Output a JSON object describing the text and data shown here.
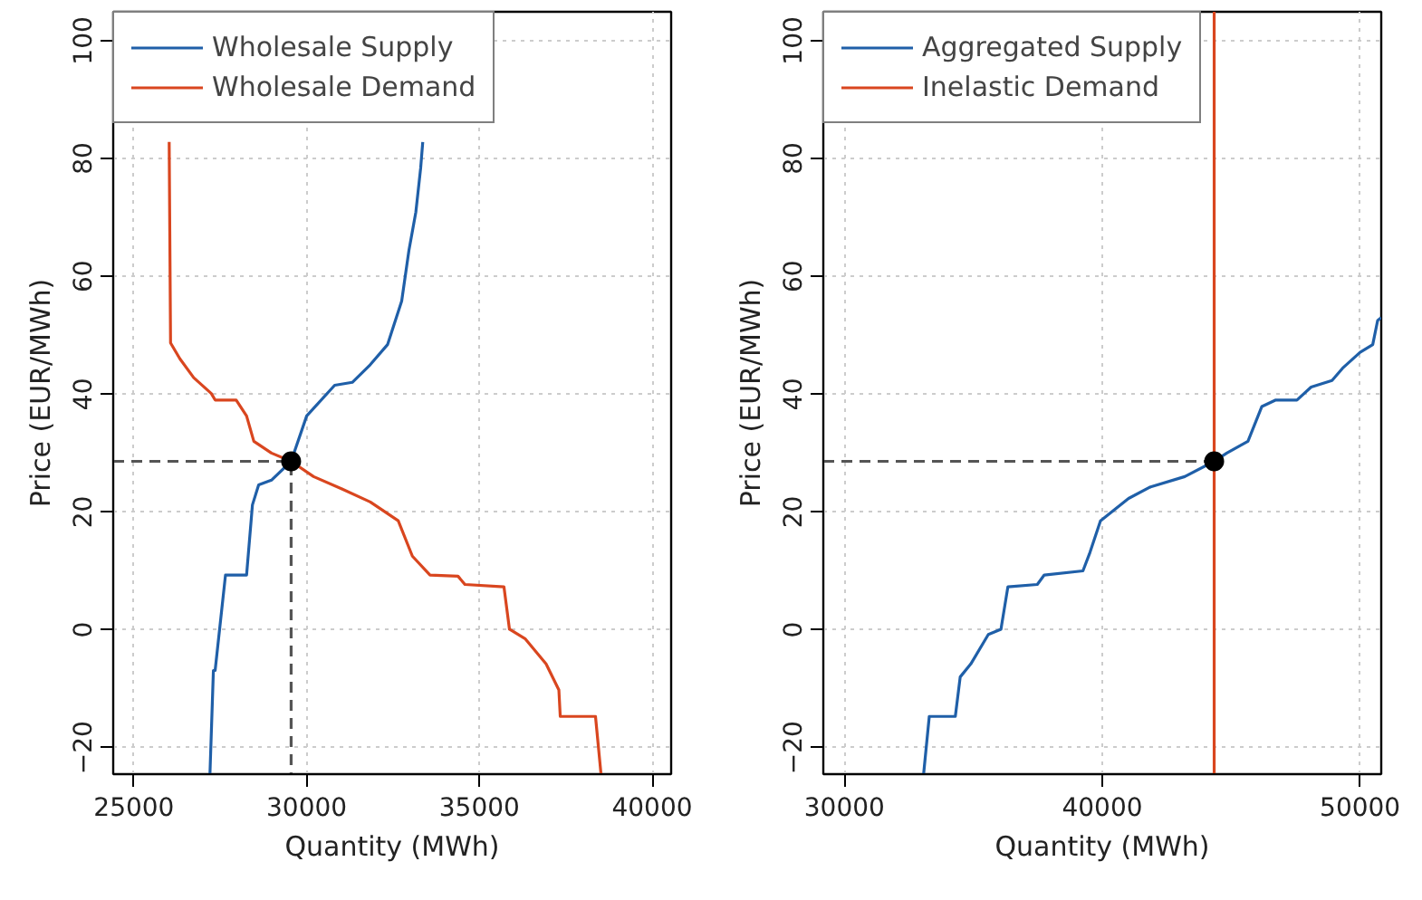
{
  "chart_data": [
    {
      "type": "line",
      "xlabel": "Quantity (MWh)",
      "ylabel": "Price (EUR/MWh)",
      "xlim": [
        24400,
        40550
      ],
      "ylim": [
        -24.5,
        104.9
      ],
      "xticks": [
        25000,
        30000,
        35000,
        40000
      ],
      "yticks": [
        -20,
        0,
        20,
        40,
        60,
        80,
        100
      ],
      "grid": true,
      "legend": "top left",
      "series": [
        {
          "name": "Wholesale Supply",
          "color": "#1f5fa8",
          "x": [
            27200,
            27300,
            27350,
            27650,
            28260,
            28430,
            28610,
            28980,
            29550,
            30000,
            30810,
            31320,
            31840,
            32340,
            32750,
            32960,
            33160,
            33300,
            33360
          ],
          "values": [
            -24.5,
            -6.9,
            -6.9,
            9.3,
            9.3,
            21.2,
            24.6,
            25.4,
            28.6,
            36.3,
            41.5,
            42.0,
            45.0,
            48.4,
            55.8,
            64.4,
            70.9,
            78.4,
            82.8
          ]
        },
        {
          "name": "Wholesale Demand",
          "color": "#d9461f",
          "x": [
            26020,
            26060,
            26330,
            26730,
            27240,
            27350,
            27960,
            28260,
            28470,
            28980,
            29550,
            30200,
            31020,
            31840,
            32650,
            33060,
            33570,
            34380,
            34580,
            35710,
            35870,
            36320,
            36930,
            37300,
            37340,
            38360,
            38520
          ],
          "values": [
            82.8,
            48.7,
            46.0,
            42.8,
            40.1,
            39.0,
            39.0,
            36.3,
            32.0,
            30.0,
            28.6,
            26.0,
            23.9,
            21.7,
            18.5,
            12.5,
            9.3,
            9.1,
            7.7,
            7.3,
            0.1,
            -1.5,
            -5.8,
            -10.2,
            -14.7,
            -14.7,
            -24.5
          ]
        },
        {
          "color": "#555555",
          "line_style": "dashed",
          "x": [
            24400,
            29550,
            29550
          ],
          "values": [
            28.6,
            28.6,
            -24.5
          ]
        },
        {
          "type": "scatter",
          "marker": "circle",
          "color": "#000000",
          "x": [
            29550
          ],
          "values": [
            28.6
          ]
        }
      ]
    },
    {
      "type": "line",
      "xlabel": "Quantity (MWh)",
      "ylabel": "Price (EUR/MWh)",
      "xlim": [
        29180,
        50820
      ],
      "ylim": [
        -24.5,
        104.9
      ],
      "xticks": [
        30000,
        40000,
        50000
      ],
      "yticks": [
        -20,
        0,
        20,
        40,
        60,
        80,
        100
      ],
      "grid": true,
      "legend": "top left",
      "series": [
        {
          "name": "Aggregated Supply",
          "color": "#1f5fa8",
          "x": [
            33070,
            33290,
            34300,
            34490,
            34900,
            35580,
            36070,
            36340,
            37480,
            37750,
            39250,
            39520,
            39930,
            41020,
            41840,
            43200,
            44340,
            44830,
            45650,
            46190,
            46730,
            47550,
            48100,
            48910,
            49320,
            50000,
            50490,
            50680,
            50820
          ],
          "values": [
            -24.5,
            -14.7,
            -14.7,
            -8.0,
            -5.8,
            -0.8,
            0.1,
            7.3,
            7.7,
            9.3,
            10.0,
            13.1,
            18.5,
            22.3,
            24.2,
            26.0,
            28.6,
            30.0,
            32.0,
            37.9,
            39.0,
            39.0,
            41.2,
            42.3,
            44.4,
            47.1,
            48.4,
            52.5,
            53.0
          ]
        },
        {
          "name": "Inelastic Demand",
          "color": "#d9461f",
          "x": [
            44340,
            44340
          ],
          "values": [
            -24.5,
            104.9
          ]
        },
        {
          "color": "#555555",
          "line_style": "dashed",
          "x": [
            29180,
            44340
          ],
          "values": [
            28.6,
            28.6
          ]
        },
        {
          "type": "scatter",
          "marker": "circle",
          "color": "#000000",
          "x": [
            44340
          ],
          "values": [
            28.6
          ]
        }
      ]
    }
  ]
}
